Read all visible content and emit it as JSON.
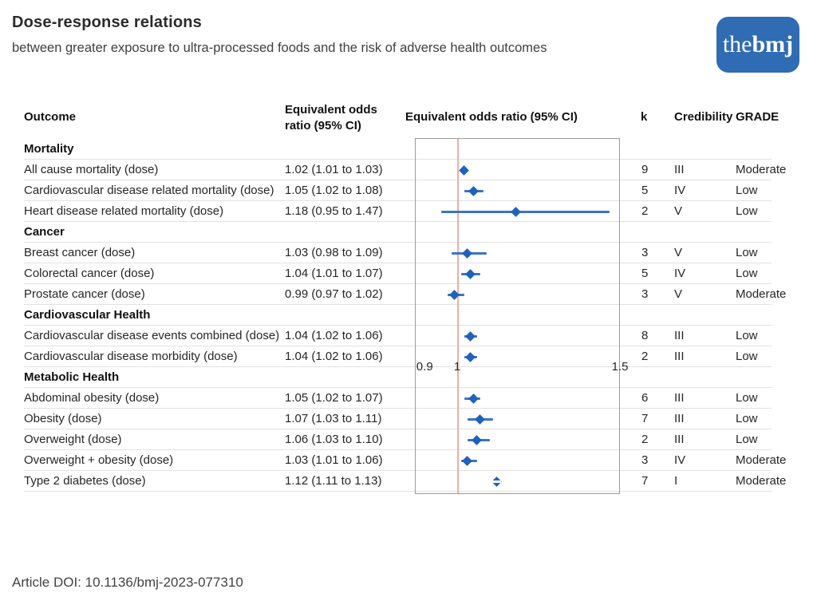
{
  "header": {
    "title": "Dose-response relations",
    "subtitle": "between greater exposure to ultra-processed foods and the risk of adverse health outcomes"
  },
  "logo": {
    "text_light": "the",
    "text_bold": "bmj",
    "bg_color": "#2f6cb3"
  },
  "columns": {
    "outcome": "Outcome",
    "or_ci": "Equivalent odds ratio (95% CI)",
    "plot": "Equivalent odds ratio (95% CI)",
    "k": "k",
    "credibility": "Credibility",
    "grade": "GRADE"
  },
  "chart_data": {
    "type": "forest",
    "title": "Equivalent odds ratio (95% CI)",
    "axis": {
      "min": 0.87,
      "max": 1.5,
      "reference_line": 1,
      "ticks": [
        {
          "value": 0.9,
          "label": "0.9"
        },
        {
          "value": 1,
          "label": "1"
        },
        {
          "value": 1.5,
          "label": "1.5"
        }
      ]
    },
    "colors": {
      "marker": "#2062ba",
      "ci_line": "#3b74c4",
      "reference_line": "#f3aca4",
      "plot_border": "#9b9b9b"
    },
    "groups": [
      {
        "label": "Mortality",
        "rows": [
          {
            "outcome": "All cause mortality (dose)",
            "or": 1.02,
            "ci_low": 1.01,
            "ci_high": 1.03,
            "or_text": "1.02 (1.01 to 1.03)",
            "k": "9",
            "credibility": "III",
            "grade": "Moderate",
            "marker_split": false
          },
          {
            "outcome": "Cardiovascular disease related mortality (dose)",
            "or": 1.05,
            "ci_low": 1.02,
            "ci_high": 1.08,
            "or_text": "1.05 (1.02 to 1.08)",
            "k": "5",
            "credibility": "IV",
            "grade": "Low",
            "marker_split": false
          },
          {
            "outcome": "Heart disease related mortality (dose)",
            "or": 1.18,
            "ci_low": 0.95,
            "ci_high": 1.47,
            "or_text": "1.18 (0.95 to 1.47)",
            "k": "2",
            "credibility": "V",
            "grade": "Low",
            "marker_split": false
          }
        ]
      },
      {
        "label": "Cancer",
        "rows": [
          {
            "outcome": "Breast cancer (dose)",
            "or": 1.03,
            "ci_low": 0.98,
            "ci_high": 1.09,
            "or_text": "1.03 (0.98 to 1.09)",
            "k": "3",
            "credibility": "V",
            "grade": "Low",
            "marker_split": false
          },
          {
            "outcome": "Colorectal cancer (dose)",
            "or": 1.04,
            "ci_low": 1.01,
            "ci_high": 1.07,
            "or_text": "1.04 (1.01 to 1.07)",
            "k": "5",
            "credibility": "IV",
            "grade": "Low",
            "marker_split": false
          },
          {
            "outcome": "Prostate cancer (dose)",
            "or": 0.99,
            "ci_low": 0.97,
            "ci_high": 1.02,
            "or_text": "0.99 (0.97 to 1.02)",
            "k": "3",
            "credibility": "V",
            "grade": "Moderate",
            "marker_split": false
          }
        ]
      },
      {
        "label": "Cardiovascular Health",
        "rows": [
          {
            "outcome": "Cardiovascular disease events combined (dose)",
            "or": 1.04,
            "ci_low": 1.02,
            "ci_high": 1.06,
            "or_text": "1.04 (1.02 to 1.06)",
            "k": "8",
            "credibility": "III",
            "grade": "Low",
            "marker_split": false
          },
          {
            "outcome": "Cardiovascular disease morbidity (dose)",
            "or": 1.04,
            "ci_low": 1.02,
            "ci_high": 1.06,
            "or_text": "1.04 (1.02 to 1.06)",
            "k": "2",
            "credibility": "III",
            "grade": "Low",
            "marker_split": false
          }
        ]
      },
      {
        "label": "Metabolic Health",
        "rows": [
          {
            "outcome": "Abdominal obesity (dose)",
            "or": 1.05,
            "ci_low": 1.02,
            "ci_high": 1.07,
            "or_text": "1.05 (1.02 to 1.07)",
            "k": "6",
            "credibility": "III",
            "grade": "Low",
            "marker_split": false
          },
          {
            "outcome": "Obesity (dose)",
            "or": 1.07,
            "ci_low": 1.03,
            "ci_high": 1.11,
            "or_text": "1.07 (1.03 to 1.11)",
            "k": "7",
            "credibility": "III",
            "grade": "Low",
            "marker_split": false
          },
          {
            "outcome": "Overweight (dose)",
            "or": 1.06,
            "ci_low": 1.03,
            "ci_high": 1.1,
            "or_text": "1.06 (1.03 to 1.10)",
            "k": "2",
            "credibility": "III",
            "grade": "Low",
            "marker_split": false
          },
          {
            "outcome": "Overweight + obesity (dose)",
            "or": 1.03,
            "ci_low": 1.01,
            "ci_high": 1.06,
            "or_text": "1.03 (1.01 to 1.06)",
            "k": "3",
            "credibility": "IV",
            "grade": "Moderate",
            "marker_split": false
          },
          {
            "outcome": "Type 2 diabetes (dose)",
            "or": 1.12,
            "ci_low": 1.11,
            "ci_high": 1.13,
            "or_text": "1.12 (1.11 to 1.13)",
            "k": "7",
            "credibility": "I",
            "grade": "Moderate",
            "marker_split": true
          }
        ]
      }
    ]
  },
  "footer": {
    "doi": "Article DOI: 10.1136/bmj-2023-077310"
  }
}
